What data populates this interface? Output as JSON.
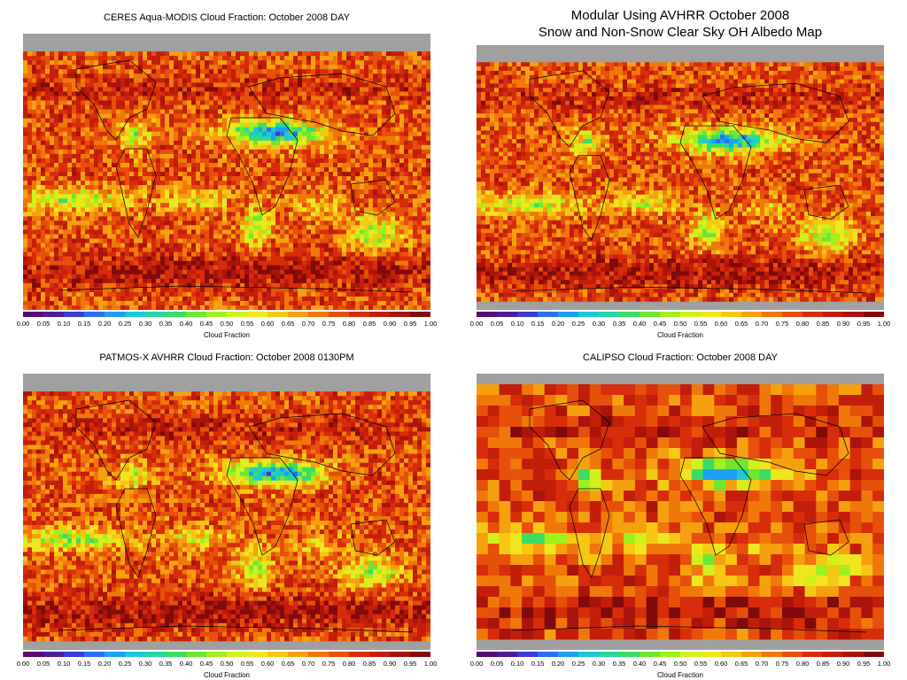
{
  "panels": [
    {
      "id": "ceres",
      "title_lines": [
        "CERES Aqua-MODIS Cloud Fraction: October 2008 DAY"
      ],
      "style": "small",
      "texture": "smooth",
      "south_band": false
    },
    {
      "id": "modular",
      "title_lines": [
        "Modular Using AVHRR October 2008",
        "Snow and Non-Snow Clear Sky OH Albedo Map"
      ],
      "style": "big",
      "texture": "smooth",
      "south_band": true
    },
    {
      "id": "patmos",
      "title_lines": [
        "PATMOS-X AVHRR Cloud Fraction: October 2008 0130PM"
      ],
      "style": "small",
      "texture": "smooth",
      "south_band": true
    },
    {
      "id": "calipso",
      "title_lines": [
        "CALIPSO Cloud Fraction: October 2008 DAY"
      ],
      "style": "small",
      "texture": "blocky",
      "south_band": true
    }
  ],
  "colorbar": {
    "ticks": [
      "0.00",
      "0.05",
      "0.10",
      "0.15",
      "0.20",
      "0.25",
      "0.30",
      "0.35",
      "0.40",
      "0.45",
      "0.50",
      "0.55",
      "0.60",
      "0.65",
      "0.70",
      "0.75",
      "0.80",
      "0.85",
      "0.90",
      "0.95",
      "1.00"
    ],
    "colors": [
      "#5a0a6e",
      "#4b1e9b",
      "#3c3cd2",
      "#2d6ef0",
      "#1ea0f0",
      "#1ec8d2",
      "#28d7a0",
      "#3cdc64",
      "#6ee632",
      "#a0f01e",
      "#d2f01e",
      "#f0e61e",
      "#f5c814",
      "#f5a00f",
      "#f0780a",
      "#e6500a",
      "#d72d0a",
      "#c31e0a",
      "#aa140a",
      "#820a0a"
    ],
    "label": "Cloud Fraction"
  },
  "no_data_color": "#a0a0a0",
  "coastline_color": "#000000"
}
